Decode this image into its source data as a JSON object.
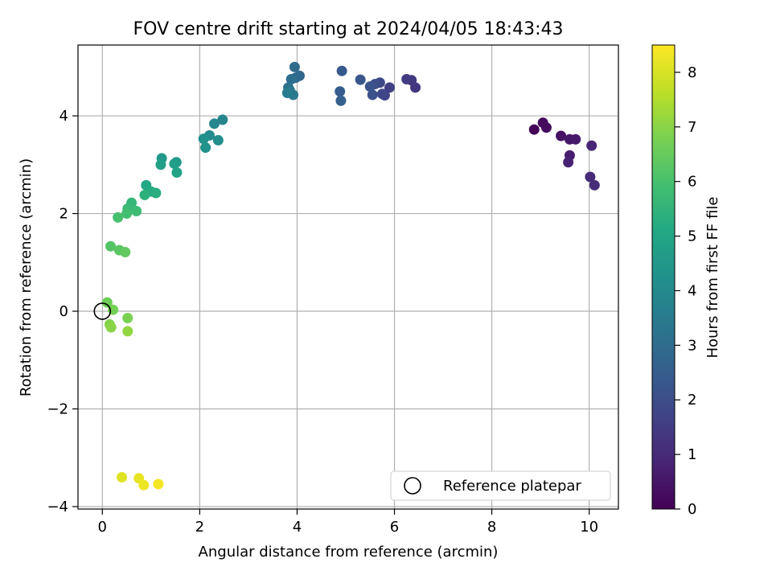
{
  "chart_data": {
    "type": "scatter",
    "title": "FOV centre drift starting at 2024/04/05 18:43:43",
    "xlabel": "Angular distance from reference (arcmin)",
    "ylabel": "Rotation from reference (arcmin)",
    "xlim": [
      -0.5,
      10.6
    ],
    "ylim": [
      -4.05,
      5.45
    ],
    "xticks": [
      0,
      2,
      4,
      6,
      8,
      10
    ],
    "yticks": [
      -4,
      -2,
      0,
      2,
      4
    ],
    "grid": true,
    "colorbar": {
      "label": "Hours from first FF file",
      "min": 0,
      "max": 8.5,
      "ticks": [
        0,
        1,
        2,
        3,
        4,
        5,
        6,
        7,
        8
      ],
      "colormap": "viridis"
    },
    "legend": {
      "position": "lower-right",
      "entries": [
        {
          "label": "Reference platepar",
          "marker": "open-circle"
        }
      ]
    },
    "reference_point": {
      "x": 0,
      "y": 0
    },
    "points": [
      {
        "x": 8.87,
        "y": 3.72,
        "c": 0.1
      },
      {
        "x": 9.05,
        "y": 3.86,
        "c": 0.2
      },
      {
        "x": 9.12,
        "y": 3.76,
        "c": 0.3
      },
      {
        "x": 9.42,
        "y": 3.59,
        "c": 0.4
      },
      {
        "x": 9.6,
        "y": 3.52,
        "c": 0.5
      },
      {
        "x": 9.72,
        "y": 3.52,
        "c": 0.6
      },
      {
        "x": 9.6,
        "y": 3.19,
        "c": 0.7
      },
      {
        "x": 9.57,
        "y": 3.05,
        "c": 0.8
      },
      {
        "x": 10.05,
        "y": 3.39,
        "c": 0.9
      },
      {
        "x": 10.02,
        "y": 2.75,
        "c": 1.0
      },
      {
        "x": 10.11,
        "y": 2.58,
        "c": 1.1
      },
      {
        "x": 6.43,
        "y": 4.58,
        "c": 1.3
      },
      {
        "x": 6.35,
        "y": 4.73,
        "c": 1.4
      },
      {
        "x": 6.25,
        "y": 4.75,
        "c": 1.5
      },
      {
        "x": 5.9,
        "y": 4.58,
        "c": 1.6
      },
      {
        "x": 5.8,
        "y": 4.42,
        "c": 1.7
      },
      {
        "x": 5.75,
        "y": 4.45,
        "c": 1.8
      },
      {
        "x": 5.7,
        "y": 4.68,
        "c": 1.9
      },
      {
        "x": 5.6,
        "y": 4.65,
        "c": 2.0
      },
      {
        "x": 5.55,
        "y": 4.43,
        "c": 2.1
      },
      {
        "x": 5.5,
        "y": 4.6,
        "c": 2.2
      },
      {
        "x": 5.3,
        "y": 4.74,
        "c": 2.3
      },
      {
        "x": 4.92,
        "y": 4.92,
        "c": 2.4
      },
      {
        "x": 4.88,
        "y": 4.5,
        "c": 2.5
      },
      {
        "x": 4.9,
        "y": 4.31,
        "c": 2.6
      },
      {
        "x": 4.05,
        "y": 4.82,
        "c": 2.8
      },
      {
        "x": 3.97,
        "y": 4.78,
        "c": 2.9
      },
      {
        "x": 3.95,
        "y": 5.0,
        "c": 3.0
      },
      {
        "x": 3.88,
        "y": 4.75,
        "c": 3.1
      },
      {
        "x": 3.82,
        "y": 4.58,
        "c": 3.2
      },
      {
        "x": 3.85,
        "y": 4.52,
        "c": 3.3
      },
      {
        "x": 3.92,
        "y": 4.43,
        "c": 3.4
      },
      {
        "x": 3.8,
        "y": 4.47,
        "c": 3.5
      },
      {
        "x": 2.47,
        "y": 3.92,
        "c": 3.8
      },
      {
        "x": 2.3,
        "y": 3.84,
        "c": 3.9
      },
      {
        "x": 2.2,
        "y": 3.6,
        "c": 4.0
      },
      {
        "x": 2.38,
        "y": 3.5,
        "c": 4.1
      },
      {
        "x": 2.08,
        "y": 3.53,
        "c": 4.2
      },
      {
        "x": 2.12,
        "y": 3.35,
        "c": 4.3
      },
      {
        "x": 1.22,
        "y": 3.13,
        "c": 4.5
      },
      {
        "x": 1.52,
        "y": 3.05,
        "c": 4.6
      },
      {
        "x": 1.48,
        "y": 3.02,
        "c": 4.7
      },
      {
        "x": 1.2,
        "y": 3.0,
        "c": 4.8
      },
      {
        "x": 1.53,
        "y": 2.84,
        "c": 4.9
      },
      {
        "x": 0.9,
        "y": 2.58,
        "c": 5.1
      },
      {
        "x": 1.0,
        "y": 2.45,
        "c": 5.2
      },
      {
        "x": 1.1,
        "y": 2.42,
        "c": 5.3
      },
      {
        "x": 0.87,
        "y": 2.38,
        "c": 5.4
      },
      {
        "x": 0.6,
        "y": 2.22,
        "c": 5.6
      },
      {
        "x": 0.52,
        "y": 2.1,
        "c": 5.7
      },
      {
        "x": 0.7,
        "y": 2.05,
        "c": 5.8
      },
      {
        "x": 0.5,
        "y": 2.0,
        "c": 5.9
      },
      {
        "x": 0.32,
        "y": 1.92,
        "c": 6.0
      },
      {
        "x": 0.17,
        "y": 1.33,
        "c": 6.2
      },
      {
        "x": 0.35,
        "y": 1.25,
        "c": 6.3
      },
      {
        "x": 0.47,
        "y": 1.21,
        "c": 6.4
      },
      {
        "x": 0.1,
        "y": 0.18,
        "c": 6.6
      },
      {
        "x": 0.22,
        "y": 0.03,
        "c": 6.7
      },
      {
        "x": 0.52,
        "y": -0.14,
        "c": 6.8
      },
      {
        "x": 0.15,
        "y": -0.27,
        "c": 6.9
      },
      {
        "x": 0.18,
        "y": -0.33,
        "c": 7.0
      },
      {
        "x": 0.52,
        "y": -0.41,
        "c": 7.1
      },
      {
        "x": 0.4,
        "y": -3.4,
        "c": 8.1
      },
      {
        "x": 0.75,
        "y": -3.42,
        "c": 8.2
      },
      {
        "x": 0.85,
        "y": -3.56,
        "c": 8.3
      },
      {
        "x": 1.15,
        "y": -3.54,
        "c": 8.4
      }
    ]
  }
}
